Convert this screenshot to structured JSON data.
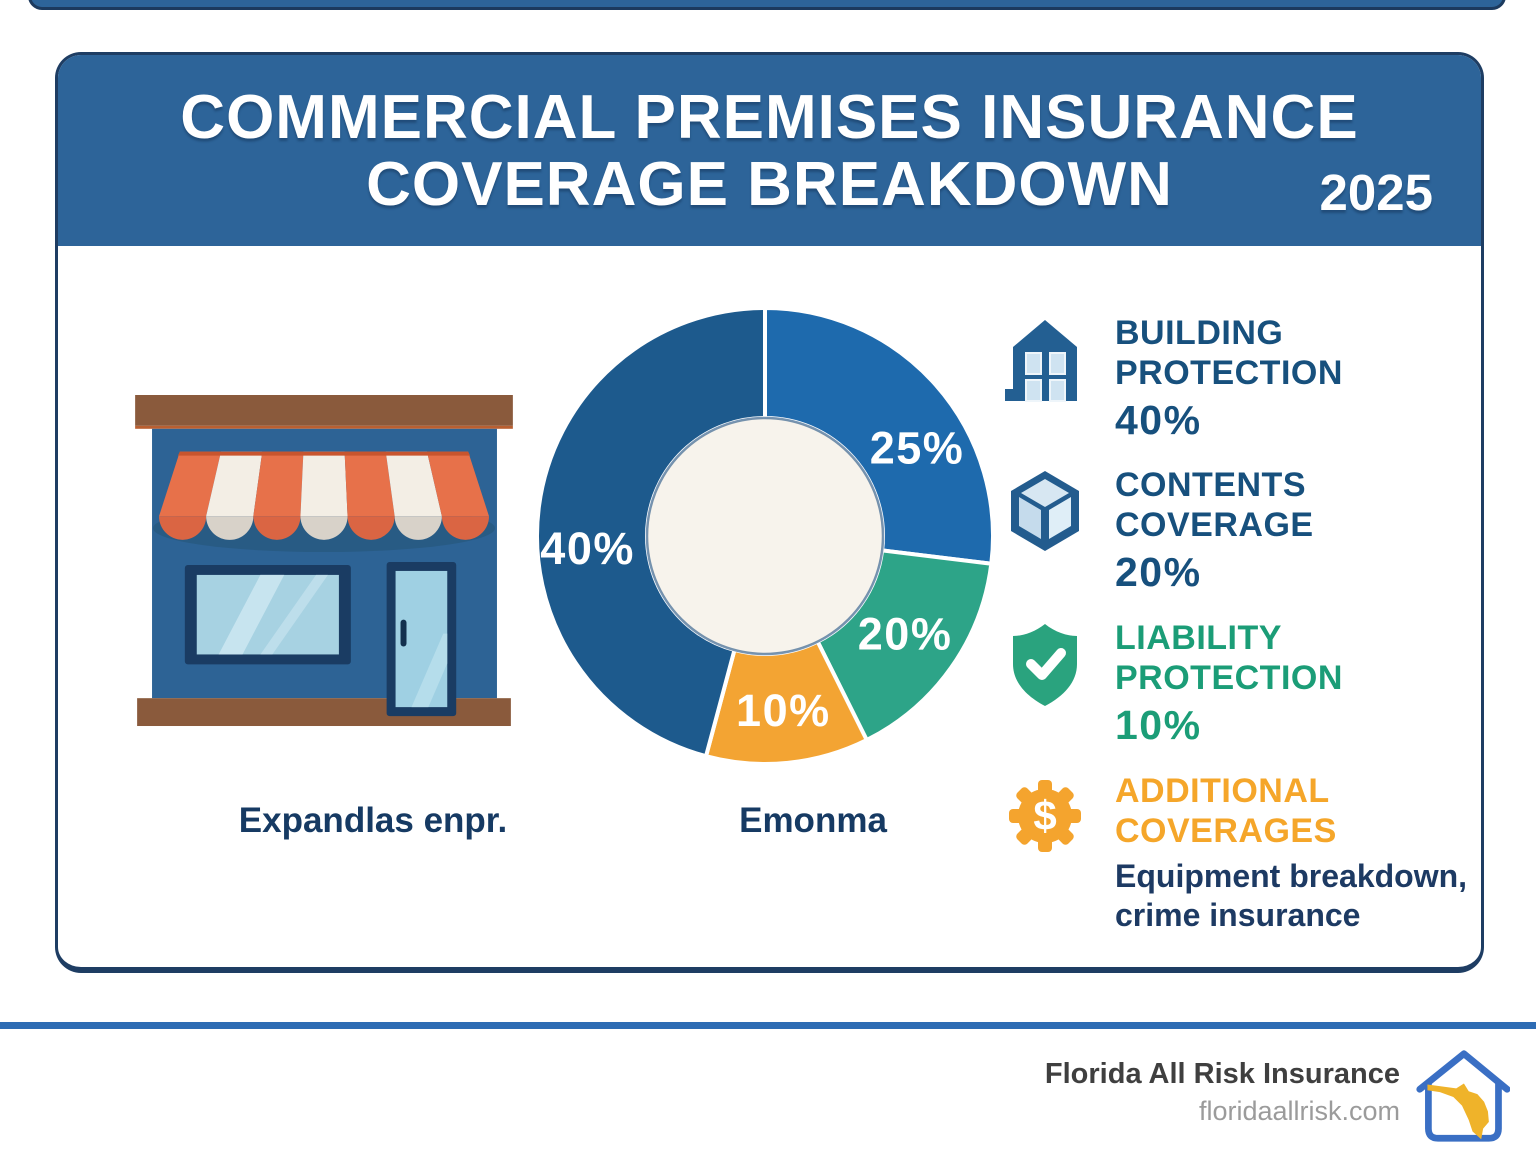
{
  "header": {
    "title_line1": "COMMERCIAL PREMISES INSURANCE",
    "title_line2": "COVERAGE BREAKDOWN",
    "year": "2025"
  },
  "storefront": {
    "caption": "Expandlas enpr."
  },
  "chart": {
    "caption": "Emonma"
  },
  "chart_data": {
    "type": "pie",
    "variant": "donut",
    "title": "Commercial premises insurance coverage breakdown",
    "unit": "%",
    "hole_color": "#f7f3ec",
    "hole_ring_color": "#1d4f80",
    "separator_color": "#ffffff",
    "legend_position": "right",
    "segments": [
      {
        "label": "25%",
        "value": 25,
        "color": "#1e6aad",
        "start_deg": 0,
        "end_deg": 97,
        "label_angle_deg": 60,
        "label_r": 0.77
      },
      {
        "label": "20%",
        "value": 20,
        "color": "#2da488",
        "start_deg": 97,
        "end_deg": 153.5,
        "label_angle_deg": 125,
        "label_r": 0.75
      },
      {
        "label": "10%",
        "value": 10,
        "color": "#f3a433",
        "start_deg": 153.5,
        "end_deg": 195,
        "label_angle_deg": 174,
        "label_r": 0.77
      },
      {
        "label": "40%",
        "value": 40,
        "color": "#1d5a8d",
        "start_deg": 195,
        "end_deg": 360,
        "label_angle_deg": 266,
        "label_r": 0.78
      }
    ]
  },
  "legend": {
    "items": [
      {
        "icon": "building-icon",
        "title_lines": [
          "BUILDING",
          "PROTECTION"
        ],
        "percent": "40%",
        "color": "#17507d"
      },
      {
        "icon": "cube-icon",
        "title_lines": [
          "CONTENTS",
          "COVERAGE"
        ],
        "percent": "20%",
        "color": "#17507d"
      },
      {
        "icon": "shield-check-icon",
        "title_lines": [
          "LIABILITY",
          "PROTECTION"
        ],
        "percent": "10%",
        "color": "#1b9d77"
      },
      {
        "icon": "gear-dollar-icon",
        "title_lines": [
          "ADDITIONAL",
          "COVERAGES"
        ],
        "percent": "",
        "color": "#f5a62a",
        "subtext_lines": [
          "Equipment breakdown,",
          "crime insurance"
        ]
      }
    ]
  },
  "footer": {
    "company": "Florida All Risk Insurance",
    "website": "floridaallrisk.com"
  },
  "colors": {
    "header_blue": "#2d6499",
    "card_border": "#1e3d63",
    "separator_blue": "#2e6cb4",
    "caption_navy": "#163a63",
    "logo_blue": "#3a6fc4",
    "logo_gold": "#efb32a"
  }
}
